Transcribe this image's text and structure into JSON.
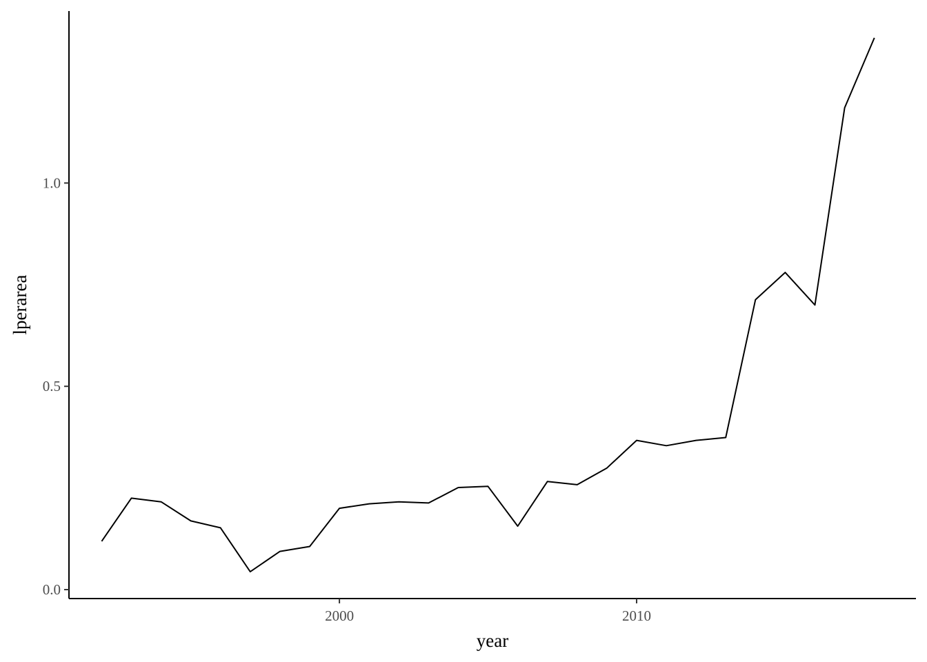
{
  "chart_data": {
    "type": "line",
    "title": "",
    "xlabel": "year",
    "ylabel": "lperarea",
    "xlim": [
      1990.9,
      2019.4
    ],
    "ylim": [
      -0.022,
      1.423
    ],
    "x_ticks": [
      2000,
      2010
    ],
    "x_tick_labels": [
      "2000",
      "2010"
    ],
    "y_ticks": [
      0.0,
      0.5,
      1.0
    ],
    "y_tick_labels": [
      "0.0",
      "0.5",
      "1.0"
    ],
    "grid": false,
    "legend": "none",
    "line_color": "#000000",
    "x": [
      1992,
      1993,
      1994,
      1995,
      1996,
      1997,
      1998,
      1999,
      2000,
      2001,
      2002,
      2003,
      2004,
      2005,
      2006,
      2007,
      2008,
      2009,
      2010,
      2011,
      2012,
      2013,
      2014,
      2015,
      2016,
      2017,
      2018
    ],
    "y": [
      0.119,
      0.225,
      0.216,
      0.169,
      0.152,
      0.044,
      0.094,
      0.106,
      0.2,
      0.211,
      0.216,
      0.213,
      0.251,
      0.254,
      0.156,
      0.266,
      0.258,
      0.299,
      0.367,
      0.354,
      0.367,
      0.374,
      0.713,
      0.78,
      0.7,
      1.185,
      1.357
    ]
  }
}
